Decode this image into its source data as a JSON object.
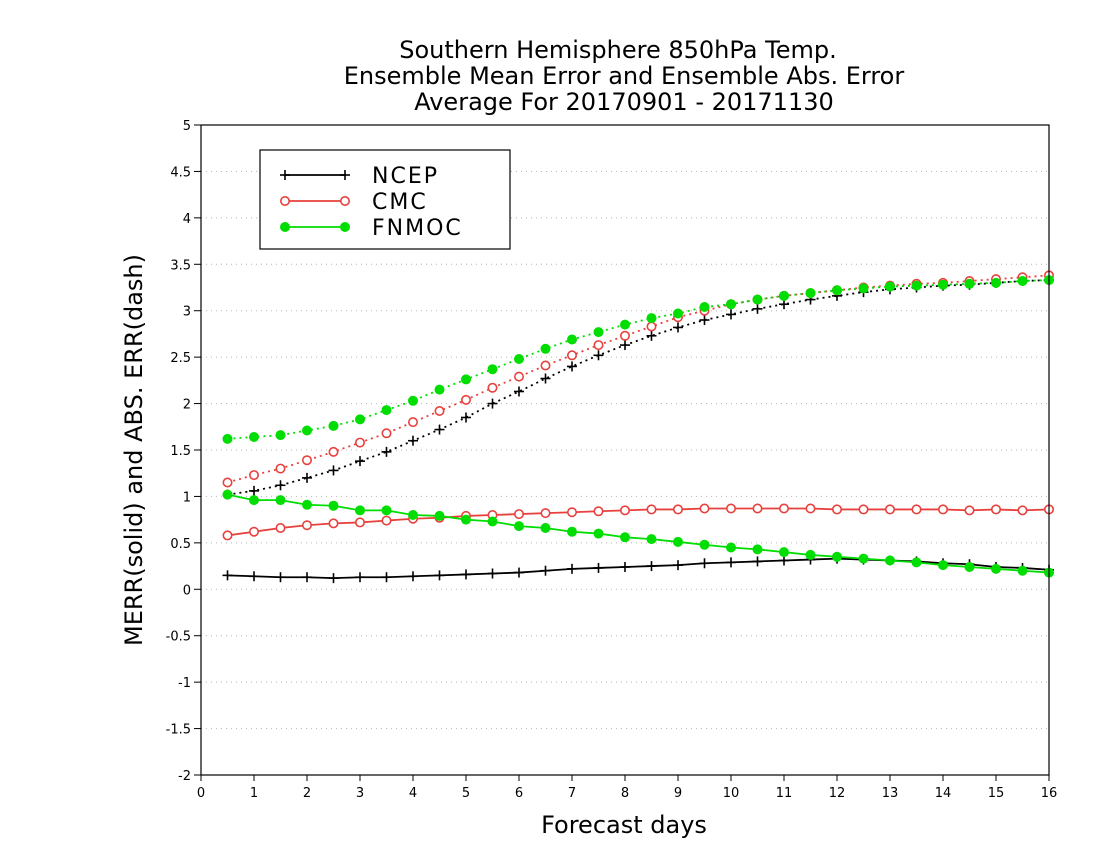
{
  "chart_data": {
    "type": "line",
    "title": [
      "Southern Hemisphere 850hPa Temp.",
      "Ensemble Mean Error and Ensemble Abs. Error",
      "Average For 20170901 - 20171130"
    ],
    "xlabel": "Forecast days",
    "ylabel": "MERR(solid) and ABS. ERR(dash)",
    "xlim": [
      0,
      16
    ],
    "ylim": [
      -2,
      5
    ],
    "xticks": [
      "0",
      "1",
      "2",
      "3",
      "4",
      "5",
      "6",
      "7",
      "8",
      "9",
      "10",
      "11",
      "12",
      "13",
      "14",
      "15",
      "16"
    ],
    "yticks": [
      "-2",
      "-1.5",
      "-1",
      "-0.5",
      "0",
      "0.5",
      "1",
      "1.5",
      "2",
      "2.5",
      "3",
      "3.5",
      "4",
      "4.5",
      "5"
    ],
    "grid": true,
    "legend_position": "top-left",
    "x": [
      0.5,
      1,
      1.5,
      2,
      2.5,
      3,
      3.5,
      4,
      4.5,
      5,
      5.5,
      6,
      6.5,
      7,
      7.5,
      8,
      8.5,
      9,
      9.5,
      10,
      10.5,
      11,
      11.5,
      12,
      12.5,
      13,
      13.5,
      14,
      14.5,
      15,
      15.5,
      16
    ],
    "series": [
      {
        "name": "NCEP",
        "color": "#000000",
        "marker": "plus",
        "merr": [
          0.15,
          0.14,
          0.13,
          0.13,
          0.12,
          0.13,
          0.13,
          0.14,
          0.15,
          0.16,
          0.17,
          0.18,
          0.2,
          0.22,
          0.23,
          0.24,
          0.25,
          0.26,
          0.28,
          0.29,
          0.3,
          0.31,
          0.32,
          0.33,
          0.32,
          0.31,
          0.3,
          0.28,
          0.27,
          0.24,
          0.23,
          0.21
        ],
        "abs_err": [
          1.02,
          1.06,
          1.12,
          1.2,
          1.28,
          1.38,
          1.48,
          1.6,
          1.72,
          1.85,
          2.0,
          2.13,
          2.27,
          2.4,
          2.52,
          2.63,
          2.73,
          2.82,
          2.9,
          2.96,
          3.02,
          3.07,
          3.12,
          3.16,
          3.2,
          3.23,
          3.25,
          3.27,
          3.28,
          3.3,
          3.32,
          3.33
        ]
      },
      {
        "name": "CMC",
        "color": "#e8403c",
        "marker": "open-circle",
        "merr": [
          0.58,
          0.62,
          0.66,
          0.69,
          0.71,
          0.72,
          0.74,
          0.76,
          0.77,
          0.79,
          0.8,
          0.81,
          0.82,
          0.83,
          0.84,
          0.85,
          0.86,
          0.86,
          0.87,
          0.87,
          0.87,
          0.87,
          0.87,
          0.86,
          0.86,
          0.86,
          0.86,
          0.86,
          0.85,
          0.86,
          0.85,
          0.86
        ],
        "abs_err": [
          1.15,
          1.23,
          1.3,
          1.39,
          1.48,
          1.58,
          1.68,
          1.8,
          1.92,
          2.04,
          2.17,
          2.29,
          2.41,
          2.52,
          2.63,
          2.73,
          2.83,
          2.93,
          3.0,
          3.07,
          3.12,
          3.16,
          3.19,
          3.22,
          3.25,
          3.27,
          3.29,
          3.3,
          3.32,
          3.34,
          3.36,
          3.38
        ]
      },
      {
        "name": "FNMOC",
        "color": "#00dd00",
        "marker": "filled-circle",
        "merr": [
          1.02,
          0.96,
          0.96,
          0.91,
          0.9,
          0.85,
          0.85,
          0.8,
          0.79,
          0.75,
          0.73,
          0.68,
          0.66,
          0.62,
          0.6,
          0.56,
          0.54,
          0.51,
          0.48,
          0.45,
          0.43,
          0.4,
          0.37,
          0.35,
          0.33,
          0.31,
          0.29,
          0.26,
          0.24,
          0.22,
          0.2,
          0.18
        ],
        "abs_err": [
          1.62,
          1.64,
          1.66,
          1.71,
          1.76,
          1.83,
          1.93,
          2.03,
          2.15,
          2.26,
          2.37,
          2.48,
          2.59,
          2.69,
          2.77,
          2.85,
          2.92,
          2.97,
          3.04,
          3.07,
          3.12,
          3.16,
          3.19,
          3.22,
          3.24,
          3.26,
          3.27,
          3.28,
          3.29,
          3.3,
          3.32,
          3.33
        ]
      }
    ]
  }
}
